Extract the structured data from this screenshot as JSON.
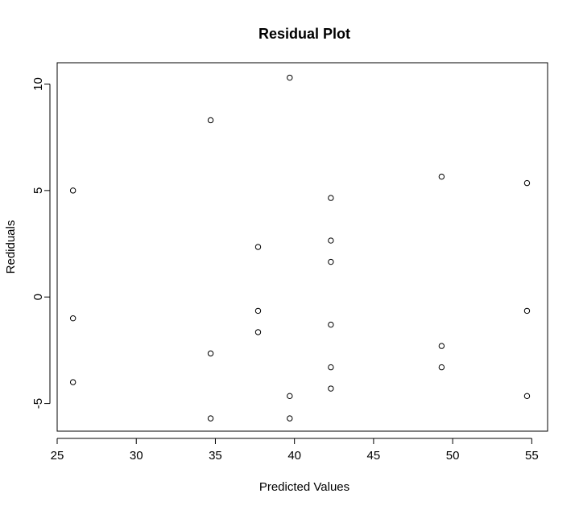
{
  "chart_data": {
    "type": "scatter",
    "title": "Residual Plot",
    "xlabel": "Predicted Values",
    "ylabel": "Rediduals",
    "xlim": [
      25,
      56
    ],
    "ylim": [
      -6.3,
      11
    ],
    "xticks": [
      25,
      30,
      35,
      40,
      45,
      50,
      55
    ],
    "yticks": [
      -5,
      0,
      5,
      10
    ],
    "grid": false,
    "legend": "none",
    "series": [
      {
        "marker": "open-circle",
        "color": "#000000",
        "points": [
          {
            "x": 26.0,
            "y": 5.0
          },
          {
            "x": 26.0,
            "y": -1.0
          },
          {
            "x": 26.0,
            "y": -4.0
          },
          {
            "x": 34.7,
            "y": 8.3
          },
          {
            "x": 34.7,
            "y": -2.65
          },
          {
            "x": 34.7,
            "y": -5.7
          },
          {
            "x": 37.7,
            "y": 2.35
          },
          {
            "x": 37.7,
            "y": -0.65
          },
          {
            "x": 37.7,
            "y": -1.65
          },
          {
            "x": 39.7,
            "y": 10.3
          },
          {
            "x": 39.7,
            "y": -4.65
          },
          {
            "x": 39.7,
            "y": -5.7
          },
          {
            "x": 42.3,
            "y": 4.65
          },
          {
            "x": 42.3,
            "y": 2.65
          },
          {
            "x": 42.3,
            "y": 1.65
          },
          {
            "x": 42.3,
            "y": -1.3
          },
          {
            "x": 42.3,
            "y": -3.3
          },
          {
            "x": 42.3,
            "y": -4.3
          },
          {
            "x": 49.3,
            "y": 5.65
          },
          {
            "x": 49.3,
            "y": -2.3
          },
          {
            "x": 49.3,
            "y": -3.3
          },
          {
            "x": 54.7,
            "y": 5.35
          },
          {
            "x": 54.7,
            "y": -0.65
          },
          {
            "x": 54.7,
            "y": -4.65
          }
        ]
      }
    ]
  }
}
